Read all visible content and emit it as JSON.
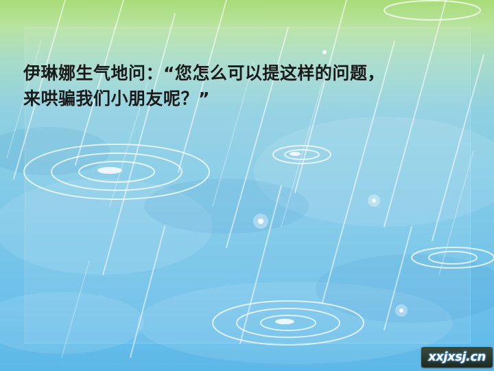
{
  "slide": {
    "lines": [
      "伊琳娜生气地问：“您怎么可以提这样的问题，",
      "来哄骗我们小朋友呢？”"
    ],
    "text_color": "#1a1a1a",
    "logo_text": "xxjxsj.cn"
  },
  "background": {
    "top_color": "#a9dc78",
    "bottom_color": "#5cb8e8",
    "motif": "rain-and-ripples"
  }
}
